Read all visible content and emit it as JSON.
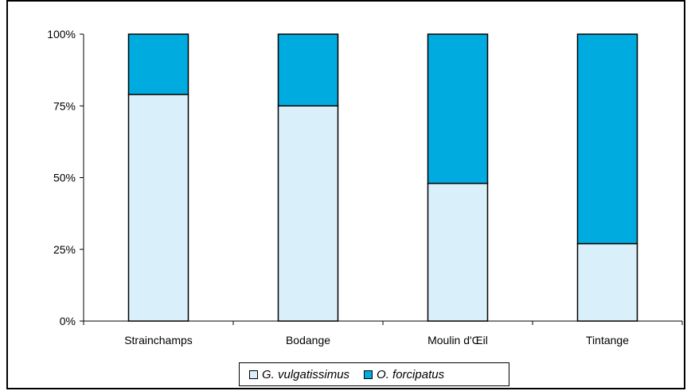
{
  "chart_data": {
    "type": "bar",
    "stacked": true,
    "percent": true,
    "categories": [
      "Strainchamps",
      "Bodange",
      "Moulin d'Œil",
      "Tintange"
    ],
    "series": [
      {
        "name": "G. vulgatissimus",
        "values": [
          79,
          75,
          48,
          27
        ],
        "color": "#d9f0fa"
      },
      {
        "name": "O. forcipatus",
        "values": [
          21,
          25,
          52,
          73
        ],
        "color": "#00abe0"
      }
    ],
    "yticks": [
      "0%",
      "25%",
      "50%",
      "75%",
      "100%"
    ],
    "ylim": [
      0,
      100
    ],
    "grid": false,
    "legend": "bottom"
  }
}
